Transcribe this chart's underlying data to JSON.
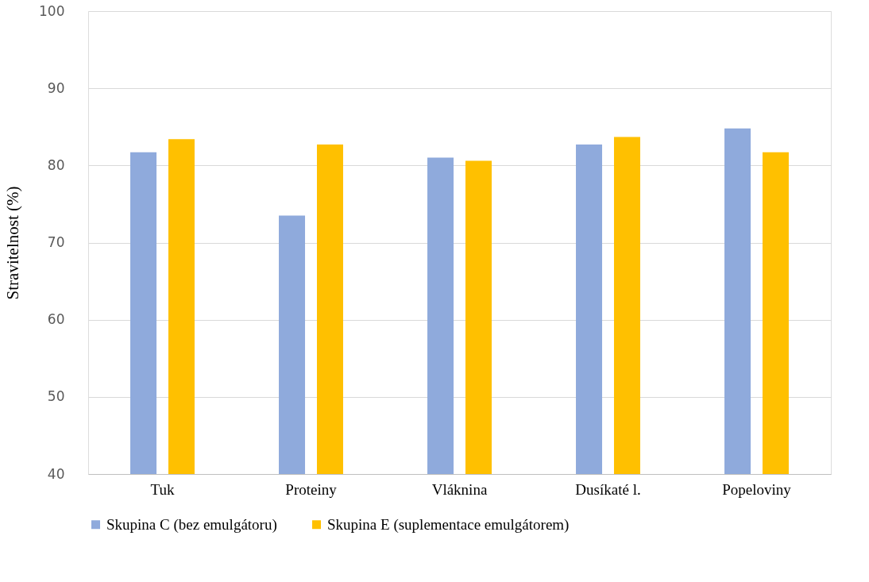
{
  "chart_data": {
    "type": "bar",
    "ylabel": "Stravitelnost (%)",
    "categories": [
      "Tuk",
      "Proteiny",
      "Vláknina",
      "Dusíkaté l.",
      "Popeloviny"
    ],
    "series": [
      {
        "name": "Skupina C (bez emulgátoru)",
        "color": "#8faadc",
        "values": [
          81.7,
          73.5,
          81.0,
          82.7,
          84.8
        ]
      },
      {
        "name": "Skupina E (suplementace emulgátorem)",
        "color": "#ffc000",
        "values": [
          83.4,
          82.7,
          80.6,
          83.7,
          81.7
        ]
      }
    ],
    "ylim": [
      40,
      100
    ],
    "yticks": [
      40,
      50,
      60,
      70,
      80,
      90,
      100
    ],
    "grid": "y",
    "legend": "bottom"
  }
}
